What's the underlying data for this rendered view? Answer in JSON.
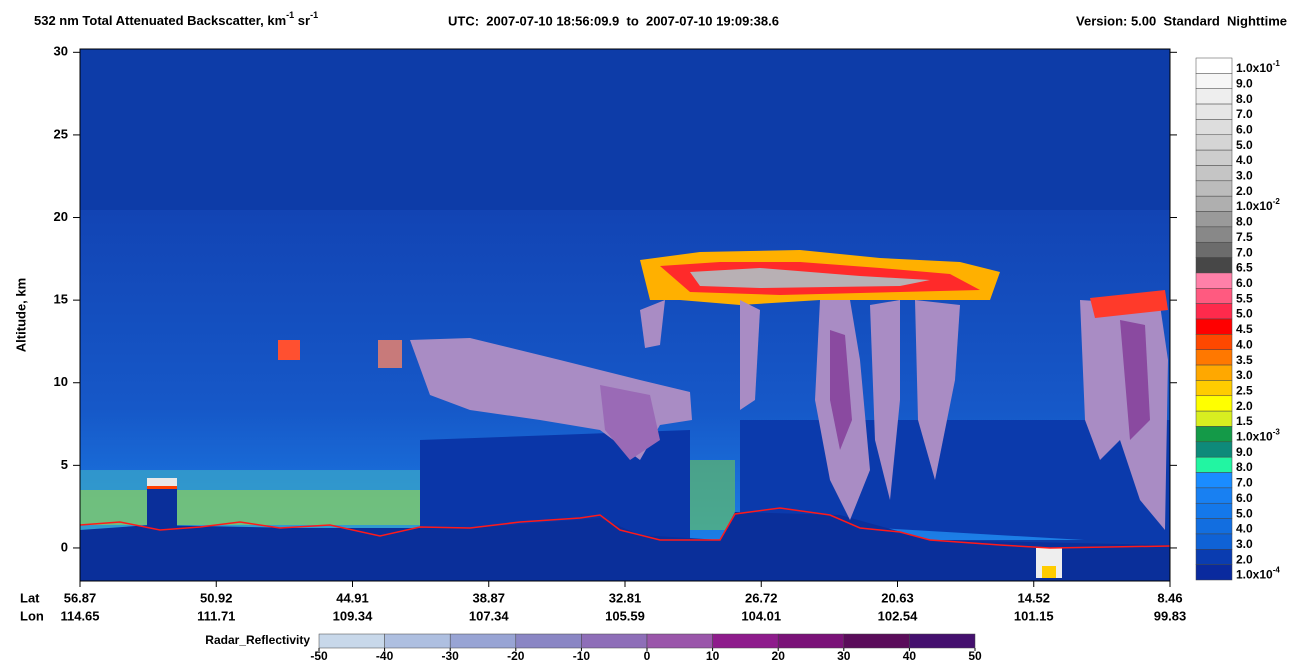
{
  "chart_data": {
    "type": "curtain",
    "title": {
      "main": "532 nm Total Attenuated Backscatter, km",
      "sup1": "-1",
      "mid": " sr",
      "sup2": "-1"
    },
    "time_range": "UTC:  2007-07-10 18:56:09.9  to  2007-07-10 19:09:38.6",
    "version": "Version: 5.00  Standard  Nighttime",
    "ylabel": "Altitude, km",
    "ylim": [
      -2,
      30.2
    ],
    "yticks": [
      0,
      5,
      10,
      15,
      20,
      25,
      30
    ],
    "x_row_labels": {
      "lat": "Lat",
      "lon": "Lon"
    },
    "lat": [
      56.87,
      50.92,
      44.91,
      38.87,
      32.81,
      26.72,
      20.63,
      14.52,
      8.46
    ],
    "lon": [
      114.65,
      111.71,
      109.34,
      107.34,
      105.59,
      104.01,
      102.54,
      101.15,
      99.83
    ],
    "colorbar": [
      {
        "label": "1.0x10",
        "sup": "-1",
        "color": "#ffffff"
      },
      {
        "label": "9.0",
        "color": "#f6f6f6"
      },
      {
        "label": "8.0",
        "color": "#eeeeee"
      },
      {
        "label": "7.0",
        "color": "#e6e6e6"
      },
      {
        "label": "6.0",
        "color": "#dddddd"
      },
      {
        "label": "5.0",
        "color": "#d5d5d5"
      },
      {
        "label": "4.0",
        "color": "#cdcdcd"
      },
      {
        "label": "3.0",
        "color": "#c5c5c5"
      },
      {
        "label": "2.0",
        "color": "#bcbcbc"
      },
      {
        "label": "1.0x10",
        "sup": "-2",
        "color": "#afafaf"
      },
      {
        "label": "8.0",
        "color": "#9a9a9a"
      },
      {
        "label": "7.5",
        "color": "#888888"
      },
      {
        "label": "7.0",
        "color": "#6c6c6c"
      },
      {
        "label": "6.5",
        "color": "#474747"
      },
      {
        "label": "6.0",
        "color": "#ff80a8"
      },
      {
        "label": "5.5",
        "color": "#ff5a80"
      },
      {
        "label": "5.0",
        "color": "#ff2a4c"
      },
      {
        "label": "4.5",
        "color": "#ff0000"
      },
      {
        "label": "4.0",
        "color": "#ff4800"
      },
      {
        "label": "3.5",
        "color": "#ff7800"
      },
      {
        "label": "3.0",
        "color": "#ffa800"
      },
      {
        "label": "2.5",
        "color": "#ffcc00"
      },
      {
        "label": "2.0",
        "color": "#ffff00"
      },
      {
        "label": "1.5",
        "color": "#d8ee20"
      },
      {
        "label": "1.0x10",
        "sup": "-3",
        "color": "#149a48"
      },
      {
        "label": "9.0",
        "color": "#0e8a7a"
      },
      {
        "label": "8.0",
        "color": "#22f5a2"
      },
      {
        "label": "7.0",
        "color": "#1a8cff"
      },
      {
        "label": "6.0",
        "color": "#1880f2"
      },
      {
        "label": "5.0",
        "color": "#1478ea"
      },
      {
        "label": "4.0",
        "color": "#126ee0"
      },
      {
        "label": "3.0",
        "color": "#0f62d6"
      },
      {
        "label": "2.0",
        "color": "#0a3cb0"
      },
      {
        "label": "1.0x10",
        "sup": "-4",
        "color": "#0a2a9e"
      }
    ],
    "reflectivity": {
      "label": "Radar_Reflectivity",
      "ticks": [
        -50,
        -40,
        -30,
        -20,
        -10,
        0,
        10,
        20,
        30,
        40,
        50
      ],
      "colors": [
        "#c8d8ea",
        "#aebfe0",
        "#98a4d4",
        "#8a86c4",
        "#8e6eb8",
        "#9a56aa",
        "#8e1c8c",
        "#7a1278",
        "#5a0c5a",
        "#44106e"
      ]
    }
  }
}
